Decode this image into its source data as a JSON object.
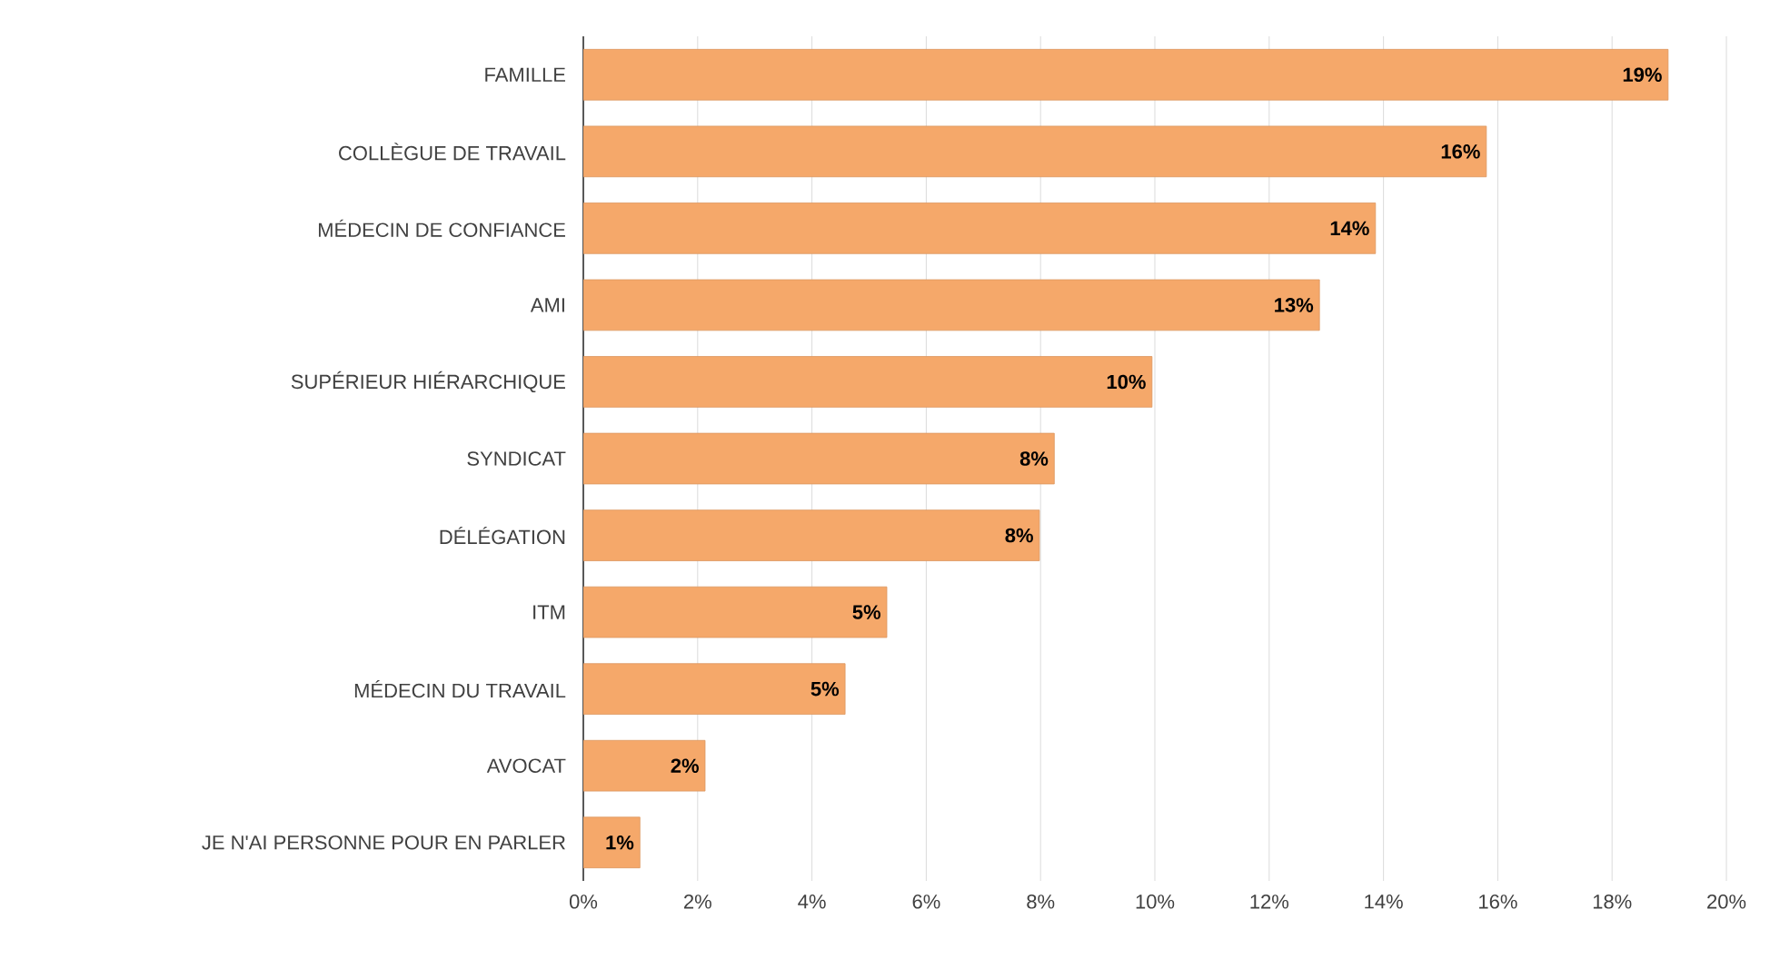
{
  "chart_data": {
    "type": "bar",
    "orientation": "horizontal",
    "color": "#f5a86a",
    "categories": [
      "FAMILLE",
      "COLLÈGUE DE TRAVAIL",
      "MÉDECIN DE CONFIANCE",
      "AMI",
      "SUPÉRIEUR HIÉRARCHIQUE",
      "SYNDICAT",
      "DÉLÉGATION",
      "ITM",
      "MÉDECIN DU TRAVAIL",
      "AVOCAT",
      "JE N'AI PERSONNE POUR EN PARLER"
    ],
    "values": [
      18.98,
      15.8,
      13.86,
      12.88,
      9.95,
      8.24,
      7.98,
      5.31,
      4.58,
      2.13,
      0.99
    ],
    "value_labels": [
      "19%",
      "16%",
      "14%",
      "13%",
      "10%",
      "8%",
      "8%",
      "5%",
      "5%",
      "2%",
      "1%"
    ],
    "xlim": [
      0,
      20
    ],
    "xticks": [
      {
        "value": 0,
        "label": "0%"
      },
      {
        "value": 2,
        "label": "2%"
      },
      {
        "value": 4,
        "label": "4%"
      },
      {
        "value": 6,
        "label": "6%"
      },
      {
        "value": 8,
        "label": "8%"
      },
      {
        "value": 10,
        "label": "10%"
      },
      {
        "value": 12,
        "label": "12%"
      },
      {
        "value": 14,
        "label": "14%"
      },
      {
        "value": 16,
        "label": "16%"
      },
      {
        "value": 18,
        "label": "18%"
      },
      {
        "value": 20,
        "label": "20%"
      }
    ],
    "grid": "x"
  }
}
